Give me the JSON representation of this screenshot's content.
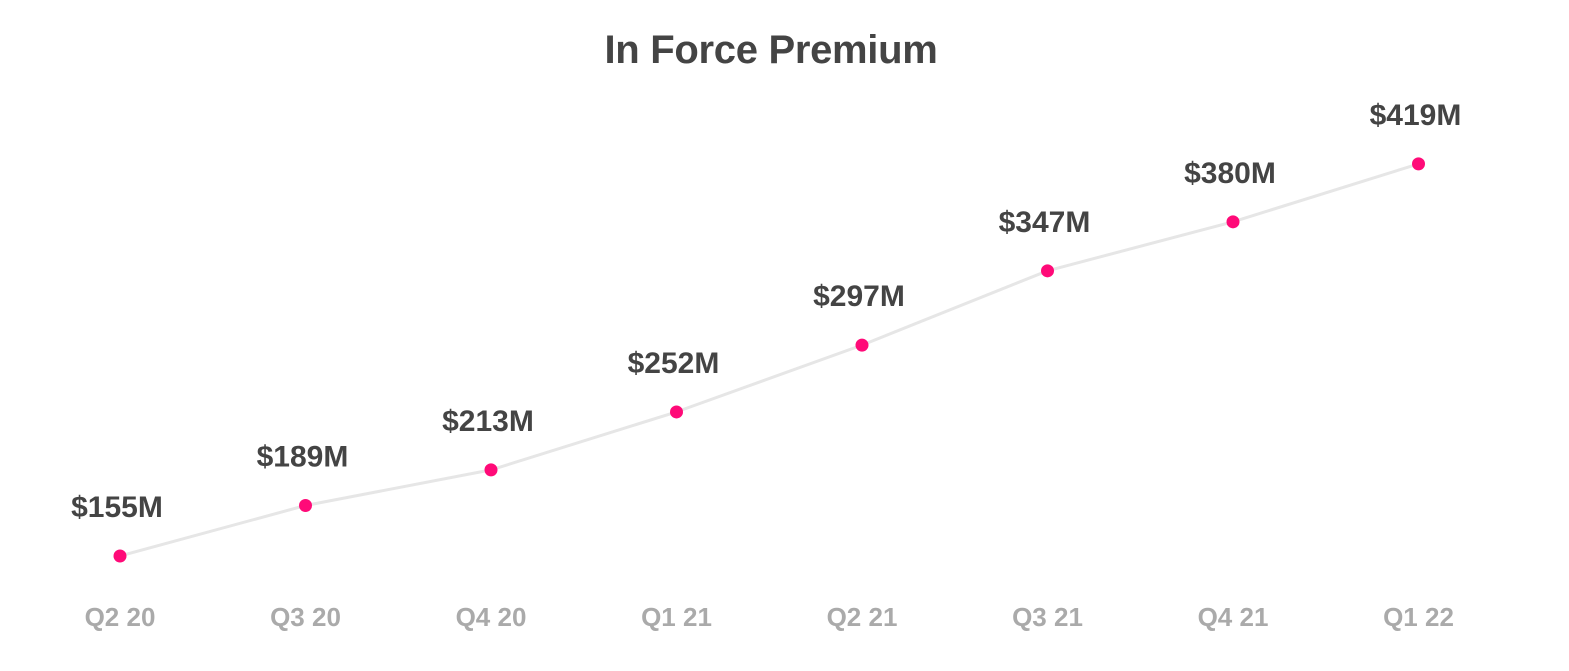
{
  "chart_data": {
    "type": "line",
    "title": "In Force Premium",
    "xlabel": "",
    "ylabel": "",
    "categories": [
      "Q2 20",
      "Q3 20",
      "Q4 20",
      "Q1 21",
      "Q2 21",
      "Q3 21",
      "Q4 21",
      "Q1 22"
    ],
    "series": [
      {
        "values": [
          155,
          189,
          213,
          252,
          297,
          347,
          380,
          419
        ],
        "data_labels": [
          "$155M",
          "$189M",
          "$213M",
          "$252M",
          "$297M",
          "$347M",
          "$380M",
          "$419M"
        ]
      }
    ],
    "unit": "$M",
    "ylim": [
      120,
      460
    ],
    "grid": false,
    "legend": "none",
    "colors": {
      "line": "#e6e6e6",
      "marker": "#ff0a78",
      "data_label": "#444444",
      "tick_label": "#aaaaaa",
      "title": "#444444"
    }
  }
}
